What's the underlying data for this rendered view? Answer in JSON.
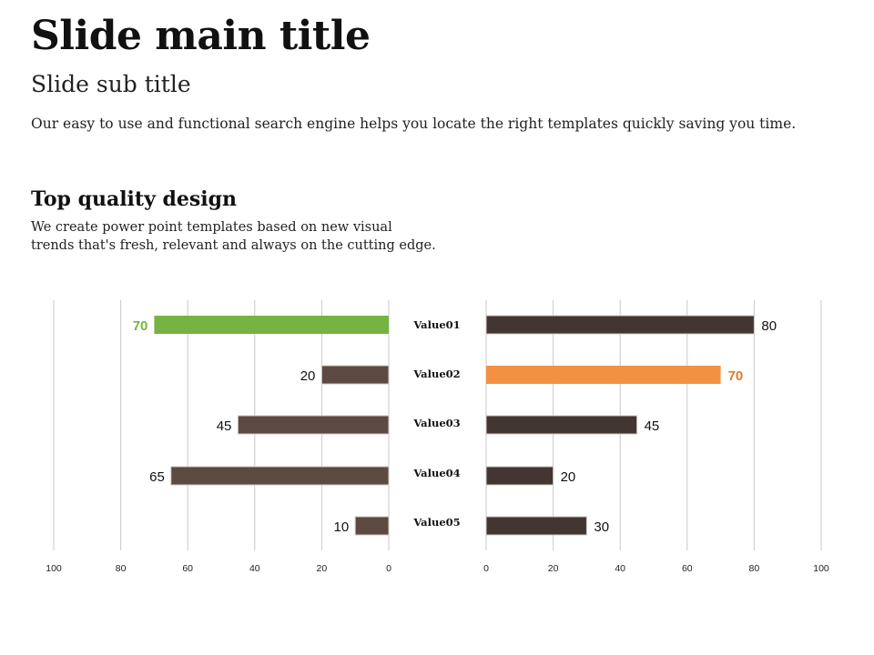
{
  "slide": {
    "title": "Slide main title",
    "subtitle": "Slide sub title",
    "intro": "Our easy to use and functional search engine  helps you locate the right templates quickly saving you time.",
    "section_heading": "Top quality design",
    "section_desc_lines": [
      "We create power point templates based on new visual",
      "trends that's fresh, relevant and always on the cutting edge."
    ]
  },
  "chart_data": [
    {
      "type": "bar",
      "orientation": "horizontal",
      "direction": "reversed",
      "categories": [
        "Value01",
        "Value02",
        "Value03",
        "Value04",
        "Value05"
      ],
      "values": [
        70,
        20,
        45,
        65,
        10
      ],
      "highlight_index": 0,
      "xlim": [
        0,
        100
      ],
      "ticks": [
        100,
        80,
        60,
        40,
        20,
        0
      ],
      "grid": true,
      "colors": {
        "bar": "#5c4a42",
        "highlight": "#75b443",
        "highlight_label": "#75b443"
      }
    },
    {
      "type": "bar",
      "orientation": "horizontal",
      "categories": [
        "Value01",
        "Value02",
        "Value03",
        "Value04",
        "Value05"
      ],
      "values": [
        80,
        70,
        45,
        20,
        30
      ],
      "highlight_index": 1,
      "xlim": [
        0,
        100
      ],
      "ticks": [
        0,
        20,
        40,
        60,
        80,
        100
      ],
      "grid": true,
      "colors": {
        "bar": "#433532",
        "highlight": "#f39143",
        "highlight_label": "#e07b2a"
      }
    }
  ]
}
